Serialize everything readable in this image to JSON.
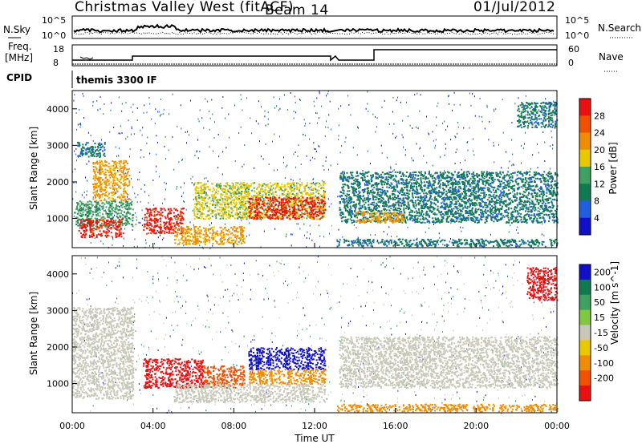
{
  "header": {
    "title": "Christmas Valley West (fitACF)",
    "beam": "Beam 14",
    "date": "01/Jul/2012"
  },
  "strips": {
    "nsky_label": "N.Sky",
    "nsearch_label": "N.Search",
    "freq_label": "Freq.",
    "freq_unit": "[MHz]",
    "nave_label": "Nave",
    "cpid_label": "CPID",
    "cpid_text": "themis 3300 IF",
    "noise_ticks_left": [
      "10^5",
      "10^0"
    ],
    "noise_ticks_right": [
      "10^5",
      "10^0"
    ],
    "freq_ticks": [
      "18",
      "8"
    ],
    "nave_ticks": [
      "60",
      "0"
    ]
  },
  "colors": {
    "power_scale": [
      "#1010c8",
      "#2060e0",
      "#107a50",
      "#40a060",
      "#e8c800",
      "#f08c00",
      "#f05000",
      "#e81010"
    ],
    "velocity_scale": [
      "#1010c8",
      "#107a50",
      "#40a060",
      "#80c840",
      "#c8c8b8",
      "#e8c800",
      "#f08c00",
      "#f05000",
      "#e81010"
    ],
    "ground_scatter": "#c8c8b8"
  },
  "chart_data": [
    {
      "type": "heatmap",
      "panel": "power",
      "ylabel": "Slant Range [km]",
      "colorbar_label": "Power [dB]",
      "colorbar_ticks": [
        "4",
        "8",
        "12",
        "16",
        "20",
        "24",
        "28"
      ],
      "xlim_hours": [
        0,
        24
      ],
      "ylim_km": [
        200,
        4500
      ],
      "y_ticks": [
        "1000",
        "2000",
        "3000",
        "4000"
      ],
      "features": [
        {
          "t0": 0.2,
          "t1": 1.6,
          "r0": 2700,
          "r1": 3100,
          "level": 8
        },
        {
          "t0": 1.0,
          "t1": 2.8,
          "r0": 1500,
          "r1": 2600,
          "level": 20
        },
        {
          "t0": 0.1,
          "t1": 3.0,
          "r0": 800,
          "r1": 1500,
          "level": 10
        },
        {
          "t0": 0.3,
          "t1": 2.5,
          "r0": 500,
          "r1": 1000,
          "level": 28
        },
        {
          "t0": 3.5,
          "t1": 5.5,
          "r0": 600,
          "r1": 1300,
          "level": 28
        },
        {
          "t0": 5.0,
          "t1": 8.5,
          "r0": 300,
          "r1": 800,
          "level": 20
        },
        {
          "t0": 6.0,
          "t1": 12.5,
          "r0": 1000,
          "r1": 2000,
          "level": 16
        },
        {
          "t0": 8.7,
          "t1": 12.5,
          "r0": 1000,
          "r1": 1600,
          "level": 28
        },
        {
          "t0": 13.2,
          "t1": 24.0,
          "r0": 900,
          "r1": 2300,
          "level": 6
        },
        {
          "t0": 13.0,
          "t1": 24.0,
          "r0": 250,
          "r1": 450,
          "level": 6
        },
        {
          "t0": 14.0,
          "t1": 16.5,
          "r0": 900,
          "r1": 1200,
          "level": 20
        },
        {
          "t0": 22.0,
          "t1": 24.0,
          "r0": 3500,
          "r1": 4200,
          "level": 8
        }
      ]
    },
    {
      "type": "heatmap",
      "panel": "velocity",
      "ylabel": "Slant Range [km]",
      "xlabel": "Time UT",
      "colorbar_label": "Velocity [m s^-1]",
      "colorbar_ticks": [
        "200",
        "100",
        "50",
        "15",
        "-15",
        "-50",
        "-100",
        "-200"
      ],
      "x_ticks": [
        "00:00",
        "04:00",
        "08:00",
        "12:00",
        "16:00",
        "20:00",
        "00:00"
      ],
      "xlim_hours": [
        0,
        24
      ],
      "ylim_km": [
        200,
        4500
      ],
      "y_ticks": [
        "1000",
        "2000",
        "3000",
        "4000"
      ],
      "features": [
        {
          "t0": 0.0,
          "t1": 3.0,
          "r0": 600,
          "r1": 3100,
          "velocity": 0,
          "ground_scatter": true
        },
        {
          "t0": 3.5,
          "t1": 6.5,
          "r0": 900,
          "r1": 1700,
          "velocity": -200
        },
        {
          "t0": 6.5,
          "t1": 8.5,
          "r0": 900,
          "r1": 1500,
          "velocity": -100
        },
        {
          "t0": 8.7,
          "t1": 12.5,
          "r0": 1400,
          "r1": 2000,
          "velocity": 200
        },
        {
          "t0": 8.7,
          "t1": 12.5,
          "r0": 1000,
          "r1": 1400,
          "velocity": -50
        },
        {
          "t0": 5.0,
          "t1": 12.5,
          "r0": 500,
          "r1": 1000,
          "velocity": 0,
          "ground_scatter": true
        },
        {
          "t0": 13.2,
          "t1": 24.0,
          "r0": 900,
          "r1": 2300,
          "velocity": 0,
          "ground_scatter": true
        },
        {
          "t0": 13.0,
          "t1": 24.0,
          "r0": 250,
          "r1": 450,
          "velocity": -50
        },
        {
          "t0": 22.5,
          "t1": 24.0,
          "r0": 3300,
          "r1": 4200,
          "velocity": -200
        }
      ]
    }
  ]
}
